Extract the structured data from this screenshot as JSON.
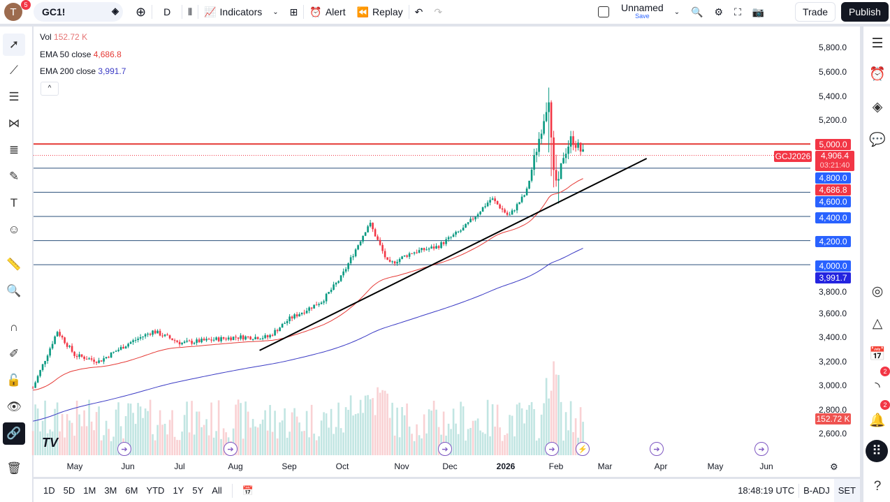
{
  "header": {
    "avatar_letter": "T",
    "notifications": "5",
    "symbol": "GC1!",
    "interval": "D",
    "indicators": "Indicators",
    "alert": "Alert",
    "replay": "Replay",
    "layout_name": "Unnamed",
    "layout_save": "Save",
    "trade": "Trade",
    "publish": "Publish"
  },
  "legend": {
    "vol_label": "Vol",
    "vol_value": "152.72 K",
    "ema50_label": "EMA 50 close",
    "ema50_value": "4,686.8",
    "ema200_label": "EMA 200 close",
    "ema200_value": "3,991.7"
  },
  "price_axis": [
    "5,800.0",
    "5,600.0",
    "5,400.0",
    "5,200.0",
    "3,800.0",
    "3,600.0",
    "3,400.0",
    "3,200.0",
    "3,000.0",
    "2,800.0",
    "2,600.0"
  ],
  "price_tags": {
    "p5000": "5,000.0",
    "contract": "GCJ2026",
    "last": "4,906.4",
    "countdown": "03:21:40",
    "p4800": "4,800.0",
    "ema50": "4,686.8",
    "p4600": "4,600.0",
    "p4400": "4,400.0",
    "p4200": "4,200.0",
    "p4000": "4,000.0",
    "ema200": "3,991.7",
    "vol": "152.72 K"
  },
  "time_axis": [
    "May",
    "Jun",
    "Jul",
    "Aug",
    "Sep",
    "Oct",
    "Nov",
    "Dec",
    "2026",
    "Feb",
    "Mar",
    "Apr",
    "May",
    "Jun"
  ],
  "bottom": {
    "ranges": [
      "1D",
      "5D",
      "1M",
      "3M",
      "6M",
      "YTD",
      "1Y",
      "5Y",
      "All"
    ],
    "clock": "18:48:19 UTC",
    "adj": "B-ADJ",
    "session": "SET"
  },
  "right_badges": {
    "feed": "2",
    "alerts": "2"
  },
  "colors": {
    "up": "#089981",
    "down": "#f23645",
    "ema50": "#e53935",
    "ema200": "#3a3ac4",
    "hline_blue": "#2a4f7a",
    "hline_red": "#e53935",
    "tag_blue": "#2962ff"
  },
  "chart_data": {
    "type": "candlestick",
    "symbol": "GC1!",
    "horizontal_levels": [
      5000,
      4800,
      4600,
      4400,
      4200,
      4000
    ],
    "trendline": [
      [
        "2025-08-15",
        3290
      ],
      [
        "2026-03-25",
        4880
      ]
    ],
    "approx_close_path": [
      [
        "2025-04-07",
        2980
      ],
      [
        "2025-04-21",
        3450
      ],
      [
        "2025-05-01",
        3250
      ],
      [
        "2025-05-15",
        3200
      ],
      [
        "2025-06-01",
        3350
      ],
      [
        "2025-06-15",
        3450
      ],
      [
        "2025-07-01",
        3350
      ],
      [
        "2025-07-20",
        3380
      ],
      [
        "2025-08-01",
        3400
      ],
      [
        "2025-08-20",
        3400
      ],
      [
        "2025-09-01",
        3550
      ],
      [
        "2025-09-20",
        3700
      ],
      [
        "2025-10-01",
        3900
      ],
      [
        "2025-10-17",
        4350
      ],
      [
        "2025-10-28",
        4000
      ],
      [
        "2025-11-10",
        4100
      ],
      [
        "2025-11-25",
        4150
      ],
      [
        "2025-12-10",
        4300
      ],
      [
        "2025-12-26",
        4550
      ],
      [
        "2026-01-05",
        4400
      ],
      [
        "2026-01-15",
        4600
      ],
      [
        "2026-01-28",
        5400
      ],
      [
        "2026-01-30",
        4800
      ],
      [
        "2026-02-02",
        4650
      ],
      [
        "2026-02-05",
        4900
      ],
      [
        "2026-02-10",
        5050
      ],
      [
        "2026-02-17",
        4906.4
      ]
    ]
  }
}
